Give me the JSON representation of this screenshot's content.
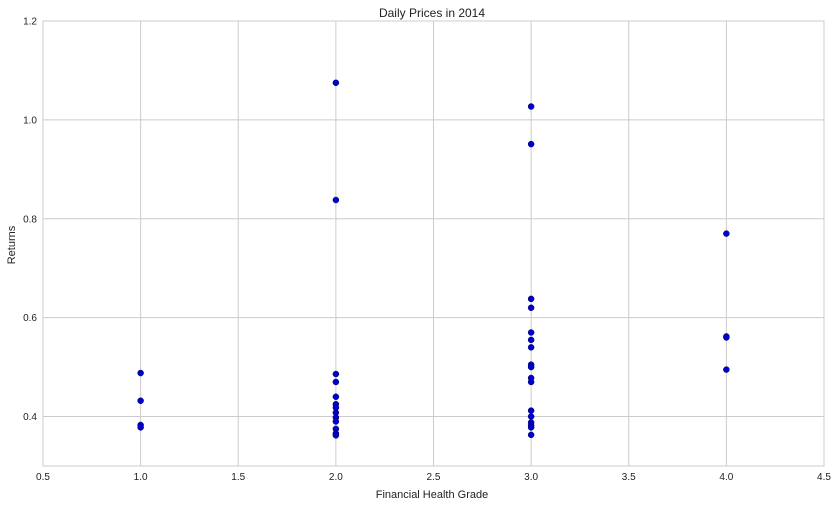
{
  "chart_data": {
    "type": "scatter",
    "title": "Daily Prices in 2014",
    "xlabel": "Financial Health Grade",
    "ylabel": "Returns",
    "xlim": [
      0.5,
      4.5
    ],
    "ylim": [
      0.3,
      1.2
    ],
    "x_ticks": [
      "0.5",
      "1.0",
      "1.5",
      "2.0",
      "2.5",
      "3.0",
      "3.5",
      "4.0",
      "4.5"
    ],
    "y_ticks": [
      "0.4",
      "0.6",
      "0.8",
      "1.0",
      "1.2"
    ],
    "grid": true,
    "legend": "none",
    "marker_color": "#0000cc",
    "points": [
      {
        "x": 1.0,
        "y": 0.488
      },
      {
        "x": 1.0,
        "y": 0.432
      },
      {
        "x": 1.0,
        "y": 0.383
      },
      {
        "x": 1.0,
        "y": 0.378
      },
      {
        "x": 2.0,
        "y": 1.075
      },
      {
        "x": 2.0,
        "y": 0.838
      },
      {
        "x": 2.0,
        "y": 0.486
      },
      {
        "x": 2.0,
        "y": 0.47
      },
      {
        "x": 2.0,
        "y": 0.44
      },
      {
        "x": 2.0,
        "y": 0.425
      },
      {
        "x": 2.0,
        "y": 0.418
      },
      {
        "x": 2.0,
        "y": 0.408
      },
      {
        "x": 2.0,
        "y": 0.398
      },
      {
        "x": 2.0,
        "y": 0.39
      },
      {
        "x": 2.0,
        "y": 0.375
      },
      {
        "x": 2.0,
        "y": 0.366
      },
      {
        "x": 2.0,
        "y": 0.362
      },
      {
        "x": 3.0,
        "y": 1.027
      },
      {
        "x": 3.0,
        "y": 0.951
      },
      {
        "x": 3.0,
        "y": 0.638
      },
      {
        "x": 3.0,
        "y": 0.62
      },
      {
        "x": 3.0,
        "y": 0.57
      },
      {
        "x": 3.0,
        "y": 0.555
      },
      {
        "x": 3.0,
        "y": 0.54
      },
      {
        "x": 3.0,
        "y": 0.505
      },
      {
        "x": 3.0,
        "y": 0.5
      },
      {
        "x": 3.0,
        "y": 0.478
      },
      {
        "x": 3.0,
        "y": 0.47
      },
      {
        "x": 3.0,
        "y": 0.412
      },
      {
        "x": 3.0,
        "y": 0.4
      },
      {
        "x": 3.0,
        "y": 0.388
      },
      {
        "x": 3.0,
        "y": 0.382
      },
      {
        "x": 3.0,
        "y": 0.378
      },
      {
        "x": 3.0,
        "y": 0.363
      },
      {
        "x": 4.0,
        "y": 0.77
      },
      {
        "x": 4.0,
        "y": 0.562
      },
      {
        "x": 4.0,
        "y": 0.56
      },
      {
        "x": 4.0,
        "y": 0.495
      }
    ]
  }
}
